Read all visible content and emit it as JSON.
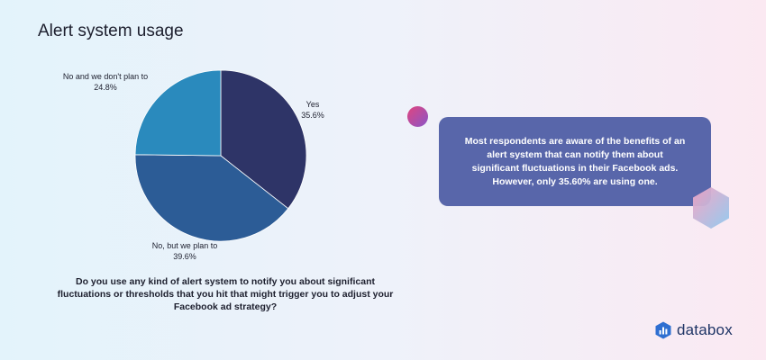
{
  "chart_data": {
    "type": "pie",
    "title": "Alert system usage",
    "slices": [
      {
        "label": "Yes",
        "value": 35.6,
        "value_label": "35.6%",
        "color": "#2e3467"
      },
      {
        "label": "No, but we plan to",
        "value": 39.6,
        "value_label": "39.6%",
        "color": "#2c5c96"
      },
      {
        "label": "No and we don't plan to",
        "value": 24.8,
        "value_label": "24.8%",
        "color": "#2a8abd"
      }
    ],
    "start_angle": "12 o'clock",
    "direction": "clockwise"
  },
  "question": "Do you use any kind of alert system to notify you about significant fluctuations or thresholds that you hit that might trigger you to adjust your Facebook ad strategy?",
  "callout": "Most respondents are aware of the benefits of an alert system that can notify them about significant fluctuations in their Facebook ads. However, only 35.60% are using one.",
  "brand": {
    "name": "databox",
    "icon": "databox-logo-icon"
  }
}
